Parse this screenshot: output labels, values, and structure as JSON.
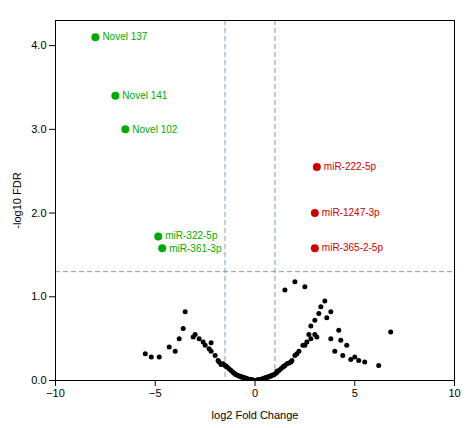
{
  "chart_data": {
    "type": "scatter",
    "xlabel": "log2 Fold Change",
    "ylabel": "-log10 FDR",
    "xlim": [
      -10,
      10
    ],
    "ylim": [
      0,
      4.3
    ],
    "xticks": [
      -10,
      -5,
      0,
      5,
      10
    ],
    "yticks": [
      0,
      1,
      2,
      3,
      4
    ],
    "grid": false,
    "reference_lines": {
      "x": [
        -1.5,
        1.0
      ],
      "y": [
        1.3
      ],
      "color": "#7799cc",
      "line_style": "dashed"
    },
    "series": [
      {
        "color": "#000000",
        "points": [
          [
            -3.5,
            0.82
          ],
          [
            -4.8,
            0.28
          ],
          [
            -2.2,
            0.45
          ],
          [
            -1.8,
            0.22
          ],
          [
            -1.5,
            0.18
          ],
          [
            -1.3,
            0.14
          ],
          [
            -1.1,
            0.1
          ],
          [
            -0.95,
            0.07
          ],
          [
            -0.8,
            0.055
          ],
          [
            -0.65,
            0.04
          ],
          [
            -0.55,
            0.03
          ],
          [
            -0.45,
            0.022
          ],
          [
            -0.38,
            0.016
          ],
          [
            -0.3,
            0.012
          ],
          [
            -0.25,
            0.009
          ],
          [
            -0.2,
            0.007
          ],
          [
            -0.17,
            0.005
          ],
          [
            -0.14,
            0.004
          ],
          [
            -0.12,
            0.003
          ],
          [
            -0.1,
            0.002
          ],
          [
            -0.08,
            0.0015
          ],
          [
            -0.06,
            0.001
          ],
          [
            -0.04,
            0.0008
          ],
          [
            -0.02,
            0.0005
          ],
          [
            0.0,
            0.0003
          ],
          [
            0.02,
            0.0005
          ],
          [
            0.04,
            0.0008
          ],
          [
            0.06,
            0.001
          ],
          [
            0.08,
            0.0015
          ],
          [
            0.1,
            0.002
          ],
          [
            0.12,
            0.003
          ],
          [
            0.14,
            0.004
          ],
          [
            0.17,
            0.005
          ],
          [
            0.2,
            0.007
          ],
          [
            0.25,
            0.009
          ],
          [
            0.3,
            0.012
          ],
          [
            0.38,
            0.016
          ],
          [
            0.45,
            0.022
          ],
          [
            0.55,
            0.03
          ],
          [
            0.65,
            0.04
          ],
          [
            0.8,
            0.055
          ],
          [
            0.95,
            0.07
          ],
          [
            1.1,
            0.1
          ],
          [
            1.3,
            0.14
          ],
          [
            1.5,
            0.18
          ],
          [
            1.8,
            0.22
          ],
          [
            2.1,
            0.32
          ],
          [
            2.4,
            0.42
          ],
          [
            2.7,
            0.55
          ],
          [
            3.0,
            0.72
          ],
          [
            3.3,
            0.88
          ],
          [
            3.8,
            0.82
          ],
          [
            4.2,
            0.6
          ],
          [
            4.6,
            0.42
          ],
          [
            5.0,
            0.28
          ],
          [
            5.5,
            0.22
          ],
          [
            1.5,
            1.08
          ],
          [
            2.0,
            1.18
          ],
          [
            2.5,
            1.12
          ],
          [
            -0.7,
            0.048
          ],
          [
            -0.5,
            0.032
          ],
          [
            -0.35,
            0.018
          ],
          [
            -0.28,
            0.013
          ],
          [
            0.28,
            0.013
          ],
          [
            0.35,
            0.018
          ],
          [
            0.5,
            0.032
          ],
          [
            0.7,
            0.048
          ],
          [
            -0.9,
            0.065
          ],
          [
            0.9,
            0.065
          ],
          [
            -1.2,
            0.12
          ],
          [
            1.2,
            0.12
          ],
          [
            -1.6,
            0.2
          ],
          [
            1.6,
            0.2
          ],
          [
            -2.0,
            0.3
          ],
          [
            2.0,
            0.3
          ],
          [
            -2.5,
            0.42
          ],
          [
            2.5,
            0.42
          ],
          [
            -3.0,
            0.55
          ],
          [
            3.0,
            0.55
          ],
          [
            -4.0,
            0.35
          ],
          [
            4.0,
            0.35
          ],
          [
            4.8,
            0.25
          ],
          [
            -5.5,
            0.32
          ],
          [
            6.2,
            0.18
          ],
          [
            6.8,
            0.58
          ],
          [
            4.4,
            0.3
          ],
          [
            3.5,
            0.95
          ],
          [
            2.8,
            0.65
          ],
          [
            -2.3,
            0.38
          ],
          [
            -1.7,
            0.19
          ],
          [
            -0.6,
            0.038
          ],
          [
            0.6,
            0.038
          ],
          [
            -0.42,
            0.023
          ],
          [
            0.42,
            0.023
          ],
          [
            -0.22,
            0.0085
          ],
          [
            0.22,
            0.0085
          ],
          [
            -0.15,
            0.0045
          ],
          [
            0.15,
            0.0045
          ],
          [
            -0.09,
            0.0018
          ],
          [
            0.09,
            0.0018
          ],
          [
            1.4,
            0.16
          ],
          [
            -1.4,
            0.16
          ],
          [
            1.7,
            0.21
          ],
          [
            -2.8,
            0.5
          ],
          [
            2.8,
            0.5
          ],
          [
            3.6,
            0.75
          ],
          [
            -3.6,
            0.62
          ],
          [
            4.3,
            0.48
          ],
          [
            -4.3,
            0.4
          ],
          [
            5.2,
            0.24
          ],
          [
            -5.2,
            0.28
          ],
          [
            1.1,
            0.11
          ],
          [
            0.85,
            0.062
          ],
          [
            3.2,
            0.8
          ],
          [
            -0.75,
            0.052
          ],
          [
            0.75,
            0.052
          ],
          [
            -1.05,
            0.088
          ],
          [
            1.05,
            0.088
          ],
          [
            -1.45,
            0.17
          ],
          [
            1.45,
            0.17
          ],
          [
            -1.85,
            0.24
          ],
          [
            1.85,
            0.24
          ],
          [
            -2.2,
            0.35
          ],
          [
            2.2,
            0.35
          ],
          [
            -2.6,
            0.46
          ],
          [
            2.6,
            0.46
          ],
          [
            -3.1,
            0.52
          ],
          [
            3.1,
            0.52
          ],
          [
            -3.8,
            0.5
          ],
          [
            3.8,
            0.5
          ]
        ]
      },
      {
        "color": "#00aa00",
        "points": [
          [
            -8.0,
            4.1
          ],
          [
            -7.0,
            3.4
          ],
          [
            -6.5,
            3.0
          ],
          [
            -4.85,
            1.72
          ],
          [
            -4.65,
            1.58
          ]
        ],
        "labels": [
          "Novel 137",
          "Novel 141",
          "Novel 102",
          "miR-322-5p",
          "miR-361-3p"
        ]
      },
      {
        "color": "#cc0000",
        "points": [
          [
            3.1,
            2.55
          ],
          [
            3.0,
            2.0
          ],
          [
            3.0,
            1.58
          ]
        ],
        "labels": [
          "miR-222-5p",
          "miR-1247-3p",
          "miR-365-2-5p"
        ]
      }
    ]
  }
}
